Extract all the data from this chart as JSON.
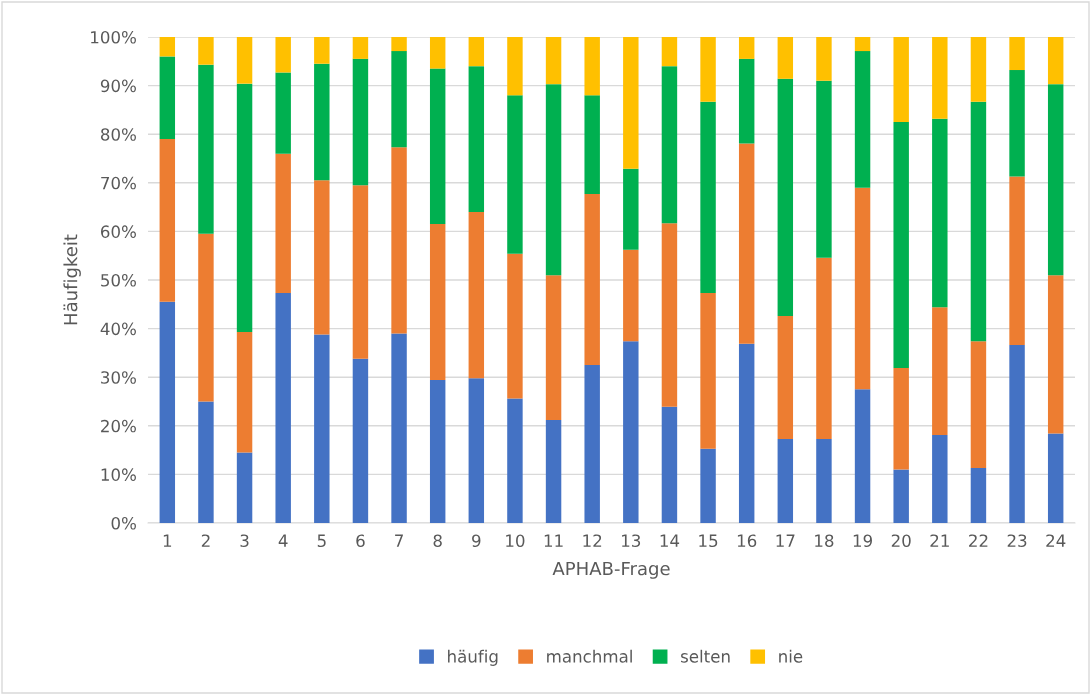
{
  "chart_data": {
    "type": "bar",
    "stacked": true,
    "xlabel": "APHAB-Frage",
    "ylabel": "Häufigkeit",
    "categories": [
      "1",
      "2",
      "3",
      "4",
      "5",
      "6",
      "7",
      "8",
      "9",
      "10",
      "11",
      "12",
      "13",
      "14",
      "15",
      "16",
      "17",
      "18",
      "19",
      "20",
      "21",
      "22",
      "23",
      "24"
    ],
    "series": [
      {
        "name": "häufig",
        "color": "#4472c4",
        "values": [
          45.5,
          25,
          14.5,
          47.3,
          38.8,
          33.8,
          39,
          29.4,
          29.8,
          25.6,
          21.2,
          32.5,
          37.4,
          23.9,
          15.3,
          36.9,
          17.3,
          17.3,
          27.5,
          11,
          18.1,
          11.3,
          36.6,
          18.4
        ]
      },
      {
        "name": "manchmal",
        "color": "#ed7d31",
        "values": [
          33.5,
          34.5,
          24.8,
          28.7,
          31.7,
          35.7,
          38.3,
          32.1,
          34.2,
          29.8,
          29.8,
          35.2,
          18.8,
          37.8,
          32,
          41.2,
          25.3,
          37.3,
          41.5,
          20.9,
          26.3,
          26.1,
          34.7,
          32.6
        ]
      },
      {
        "name": "selten",
        "color": "#00b050",
        "values": [
          17,
          34.8,
          51.1,
          16.7,
          24,
          26,
          19.8,
          32,
          30,
          32.6,
          39.3,
          20.3,
          16.7,
          32.3,
          39.4,
          17.4,
          48.8,
          36.4,
          28.1,
          50.6,
          38.8,
          49.3,
          21.9,
          39.3
        ]
      },
      {
        "name": "nie",
        "color": "#ffc000",
        "values": [
          4,
          5.7,
          9.6,
          7.3,
          5.5,
          4.5,
          2.9,
          6.5,
          6,
          12,
          9.7,
          12,
          27.1,
          6,
          13.3,
          4.5,
          8.6,
          9,
          2.9,
          17.5,
          16.8,
          13.3,
          6.8,
          9.7
        ]
      }
    ],
    "ylim": [
      0,
      100
    ],
    "yticks": [
      {
        "value": 0,
        "label": "0%"
      },
      {
        "value": 10,
        "label": "10%"
      },
      {
        "value": 20,
        "label": "20%"
      },
      {
        "value": 30,
        "label": "30%"
      },
      {
        "value": 40,
        "label": "40%"
      },
      {
        "value": 50,
        "label": "50%"
      },
      {
        "value": 60,
        "label": "60%"
      },
      {
        "value": 70,
        "label": "70%"
      },
      {
        "value": 80,
        "label": "80%"
      },
      {
        "value": 90,
        "label": "90%"
      },
      {
        "value": 100,
        "label": "100%"
      }
    ],
    "grid": "y",
    "legend": "bottom"
  }
}
